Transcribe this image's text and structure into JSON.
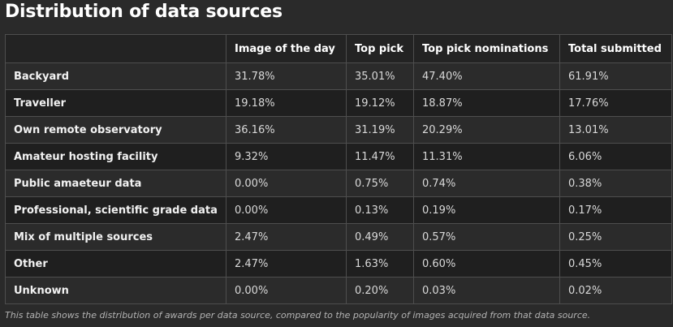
{
  "title": "Distribution of data sources",
  "table": {
    "headers": [
      "",
      "Image of the day",
      "Top pick",
      "Top pick nominations",
      "Total submitted"
    ],
    "rows": [
      {
        "label": "Backyard",
        "values": [
          "31.78%",
          "35.01%",
          "47.40%",
          "61.91%"
        ]
      },
      {
        "label": "Traveller",
        "values": [
          "19.18%",
          "19.12%",
          "18.87%",
          "17.76%"
        ]
      },
      {
        "label": "Own remote observatory",
        "values": [
          "36.16%",
          "31.19%",
          "20.29%",
          "13.01%"
        ]
      },
      {
        "label": "Amateur hosting facility",
        "values": [
          "9.32%",
          "11.47%",
          "11.31%",
          "6.06%"
        ]
      },
      {
        "label": "Public amaeteur data",
        "values": [
          "0.00%",
          "0.75%",
          "0.74%",
          "0.38%"
        ]
      },
      {
        "label": "Professional, scientific grade data",
        "values": [
          "0.00%",
          "0.13%",
          "0.19%",
          "0.17%"
        ]
      },
      {
        "label": "Mix of multiple sources",
        "values": [
          "2.47%",
          "0.49%",
          "0.57%",
          "0.25%"
        ]
      },
      {
        "label": "Other",
        "values": [
          "2.47%",
          "1.63%",
          "0.60%",
          "0.45%"
        ]
      },
      {
        "label": "Unknown",
        "values": [
          "0.00%",
          "0.20%",
          "0.03%",
          "0.02%"
        ]
      }
    ]
  },
  "caption": "This table shows the distribution of awards per data source, compared to the popularity of images acquired from that data source."
}
